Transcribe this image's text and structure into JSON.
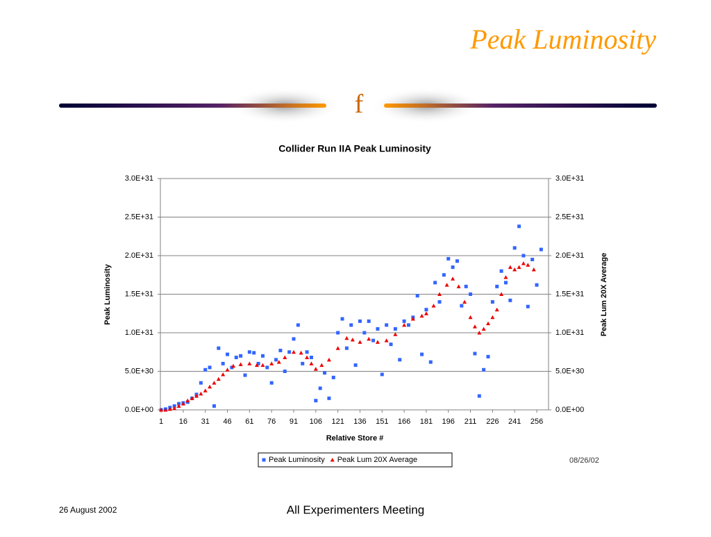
{
  "slide_title": "Peak Luminosity",
  "logo": "f",
  "footer_left": "26 August 2002",
  "footer_center": "All Experimenters Meeting",
  "date_stamp": "08/26/02",
  "chart_data": {
    "type": "scatter",
    "title": "Collider Run IIA Peak Luminosity",
    "x_label": "Relative Store #",
    "y_label": "Peak Luminosity",
    "y2_label": "Peak Lum 20X Average",
    "xlim": [
      0.5,
      264
    ],
    "xticks": [
      1,
      16,
      31,
      46,
      61,
      76,
      91,
      106,
      121,
      136,
      151,
      166,
      181,
      196,
      211,
      226,
      241,
      256
    ],
    "ylim": [
      0,
      3e+31
    ],
    "yticks": [
      {
        "value": 0,
        "label": "0.0E+00"
      },
      {
        "value": 5e+30,
        "label": "5.0E+30"
      },
      {
        "value": 1e+31,
        "label": "1.0E+31"
      },
      {
        "value": 1.5e+31,
        "label": "1.5E+31"
      },
      {
        "value": 2e+31,
        "label": "2.0E+31"
      },
      {
        "value": 2.5e+31,
        "label": "2.5E+31"
      },
      {
        "value": 3e+31,
        "label": "3.0E+31"
      }
    ],
    "y2lim": [
      0,
      3e+31
    ],
    "y2ticks": [
      {
        "value": 0,
        "label": "0.0E+00"
      },
      {
        "value": 5e+30,
        "label": "5.0E+30"
      },
      {
        "value": 1e+31,
        "label": "1.0E+31"
      },
      {
        "value": 1.5e+31,
        "label": "1.5E+31"
      },
      {
        "value": 2e+31,
        "label": "2.0E+31"
      },
      {
        "value": 2.5e+31,
        "label": "2.5E+31"
      },
      {
        "value": 3e+31,
        "label": "3.0E+31"
      }
    ],
    "grid": true,
    "legend": "bottom",
    "series": [
      {
        "name": "Peak Luminosity",
        "color": "#3366ff",
        "marker": "square",
        "x": [
          1,
          4,
          7,
          10,
          13,
          16,
          19,
          22,
          25,
          28,
          31,
          34,
          37,
          40,
          43,
          46,
          49,
          52,
          55,
          58,
          61,
          64,
          67,
          70,
          73,
          76,
          79,
          82,
          85,
          88,
          91,
          94,
          97,
          100,
          103,
          106,
          109,
          112,
          115,
          118,
          121,
          124,
          127,
          130,
          133,
          136,
          139,
          142,
          145,
          148,
          151,
          154,
          157,
          160,
          163,
          166,
          169,
          172,
          175,
          178,
          181,
          184,
          187,
          190,
          193,
          196,
          199,
          202,
          205,
          208,
          211,
          214,
          217,
          220,
          223,
          226,
          229,
          232,
          235,
          238,
          241,
          244,
          247,
          250,
          253,
          256,
          259
        ],
        "values": [
          0,
          1e+29,
          3e+29,
          5e+29,
          8e+29,
          9e+29,
          1e+30,
          1.5e+30,
          2e+30,
          3.5e+30,
          5.2e+30,
          5.5e+30,
          5e+29,
          8e+30,
          6e+30,
          7.2e+30,
          5.5e+30,
          6.8e+30,
          7e+30,
          4.5e+30,
          7.5e+30,
          7.4e+30,
          6e+30,
          7e+30,
          5.5e+30,
          3.5e+30,
          6.5e+30,
          7.7e+30,
          5e+30,
          7.5e+30,
          9.2e+30,
          1.1e+31,
          6e+30,
          7.5e+30,
          6.8e+30,
          1.2e+30,
          2.8e+30,
          4.8e+30,
          1.5e+30,
          4.2e+30,
          1e+31,
          1.18e+31,
          8e+30,
          1.1e+31,
          5.8e+30,
          1.15e+31,
          1e+31,
          1.15e+31,
          9e+30,
          1.05e+31,
          4.6e+30,
          1.1e+31,
          8.5e+30,
          1.05e+31,
          6.5e+30,
          1.15e+31,
          1.1e+31,
          1.2e+31,
          1.48e+31,
          7.2e+30,
          1.3e+31,
          6.2e+30,
          1.65e+31,
          1.4e+31,
          1.75e+31,
          1.96e+31,
          1.85e+31,
          1.93e+31,
          1.35e+31,
          1.6e+31,
          1.5e+31,
          7.3e+30,
          1.8e+30,
          5.2e+30,
          6.9e+30,
          1.4e+31,
          1.6e+31,
          1.8e+31,
          1.65e+31,
          1.42e+31,
          2.1e+31,
          2.38e+31,
          2e+31,
          1.34e+31,
          1.95e+31,
          1.62e+31,
          2.08e+31
        ]
      },
      {
        "name": "Peak Lum 20X Average",
        "color": "#ee0000",
        "marker": "triangle",
        "axis": "y2",
        "x": [
          1,
          4,
          7,
          10,
          13,
          16,
          19,
          22,
          25,
          28,
          31,
          34,
          37,
          40,
          43,
          46,
          50,
          55,
          61,
          66,
          70,
          76,
          81,
          85,
          91,
          96,
          100,
          103,
          106,
          110,
          115,
          121,
          127,
          131,
          136,
          142,
          148,
          154,
          160,
          166,
          172,
          178,
          181,
          186,
          190,
          195,
          199,
          203,
          207,
          211,
          214,
          217,
          220,
          223,
          226,
          229,
          232,
          235,
          238,
          241,
          244,
          247,
          250,
          254
        ],
        "values": [
          0,
          0,
          1e+29,
          2e+29,
          5e+29,
          8e+29,
          1.2e+30,
          1.5e+30,
          1.8e+30,
          2.1e+30,
          2.5e+30,
          3e+30,
          3.5e+30,
          4e+30,
          4.6e+30,
          5.2e+30,
          5.7e+30,
          5.9e+30,
          6e+30,
          5.8e+30,
          5.8e+30,
          6e+30,
          6.2e+30,
          6.8e+30,
          7.5e+30,
          7.4e+30,
          6.8e+30,
          6e+30,
          5.3e+30,
          5.8e+30,
          6.5e+30,
          8e+30,
          9.3e+30,
          9.1e+30,
          8.8e+30,
          9.2e+30,
          8.8e+30,
          9e+30,
          9.8e+30,
          1.1e+31,
          1.18e+31,
          1.22e+31,
          1.25e+31,
          1.35e+31,
          1.5e+31,
          1.62e+31,
          1.7e+31,
          1.6e+31,
          1.4e+31,
          1.2e+31,
          1.08e+31,
          1e+31,
          1.05e+31,
          1.12e+31,
          1.2e+31,
          1.3e+31,
          1.5e+31,
          1.72e+31,
          1.85e+31,
          1.82e+31,
          1.85e+31,
          1.9e+31,
          1.88e+31,
          1.82e+31
        ]
      }
    ]
  }
}
